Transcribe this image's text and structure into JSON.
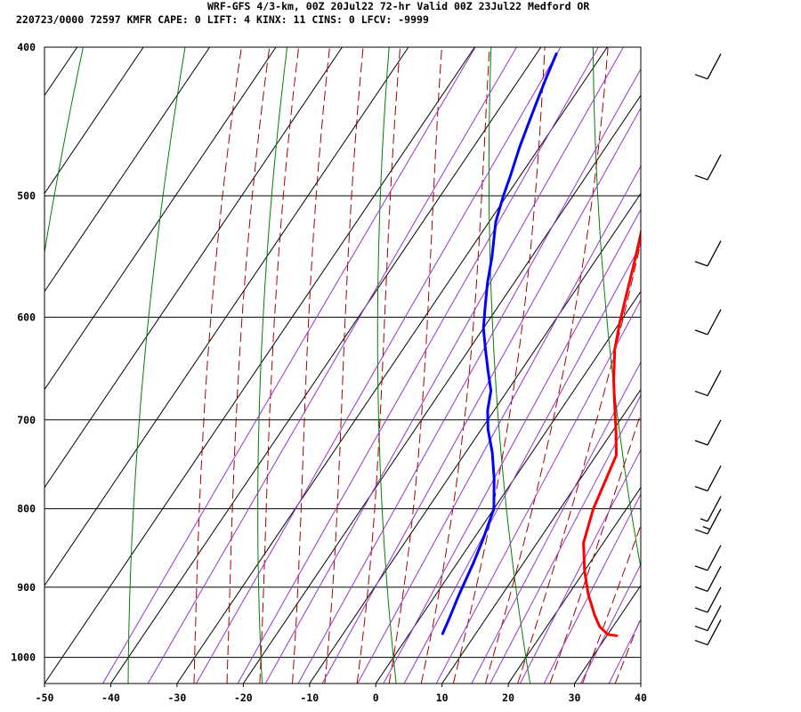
{
  "header": {
    "line1": "WRF-GFS 4/3-km, 00Z 20Jul22 72-hr Valid 00Z 23Jul22 Medford OR",
    "line2": "220723/0000 72597  KMFR    CAPE:     0 LIFT:     4 KINX:    11 CINS:     0 LFCV: -9999"
  },
  "chart_data": {
    "type": "line",
    "chart_kind": "skew-t log-p",
    "x_axis": {
      "range": [
        -50,
        40
      ],
      "ticks": [
        -50,
        -40,
        -30,
        -20,
        -10,
        0,
        10,
        20,
        30,
        40
      ]
    },
    "y_axis": {
      "scale": "log",
      "range": [
        1040,
        400
      ],
      "ticks": [
        400,
        500,
        600,
        700,
        800,
        900,
        1000
      ]
    },
    "grid": true,
    "series": [
      {
        "role": "temperature",
        "color": "#ff0000",
        "points": [
          [
            31.5,
            968
          ],
          [
            30,
            966
          ],
          [
            28,
            955
          ],
          [
            26,
            938
          ],
          [
            23,
            910
          ],
          [
            20,
            878
          ],
          [
            17,
            842
          ],
          [
            15,
            800
          ],
          [
            14,
            768
          ],
          [
            13,
            738
          ],
          [
            10.5,
            712
          ],
          [
            8,
            688
          ],
          [
            5,
            660
          ],
          [
            2,
            630
          ],
          [
            0,
            605
          ],
          [
            -2,
            578
          ],
          [
            -4,
            552
          ],
          [
            -6,
            528
          ],
          [
            -8,
            505
          ],
          [
            -10,
            484
          ],
          [
            -12,
            464
          ],
          [
            -14,
            447
          ],
          [
            -16,
            431
          ],
          [
            -18,
            416
          ],
          [
            -20,
            404
          ]
        ]
      },
      {
        "role": "dewpoint",
        "color": "#0000ff",
        "points": [
          [
            5,
            965
          ],
          [
            4.5,
            945
          ],
          [
            3.5,
            910
          ],
          [
            2.5,
            870
          ],
          [
            1.5,
            838
          ],
          [
            0,
            800
          ],
          [
            -3,
            765
          ],
          [
            -6,
            735
          ],
          [
            -9,
            710
          ],
          [
            -11,
            690
          ],
          [
            -12.5,
            670
          ],
          [
            -15,
            650
          ],
          [
            -17.5,
            630
          ],
          [
            -20,
            610
          ],
          [
            -22,
            590
          ],
          [
            -24,
            570
          ],
          [
            -26,
            548
          ],
          [
            -29,
            520
          ],
          [
            -30.5,
            500
          ],
          [
            -31.5,
            485
          ],
          [
            -33,
            465
          ],
          [
            -34,
            450
          ],
          [
            -35,
            435
          ],
          [
            -36,
            420
          ],
          [
            -37,
            404
          ]
        ]
      }
    ],
    "wind_barbs": [
      {
        "p": 404,
        "spd_kt": 10
      },
      {
        "p": 470,
        "spd_kt": 10
      },
      {
        "p": 535,
        "spd_kt": 10
      },
      {
        "p": 593,
        "spd_kt": 10
      },
      {
        "p": 650,
        "spd_kt": 10
      },
      {
        "p": 700,
        "spd_kt": 10
      },
      {
        "p": 750,
        "spd_kt": 10
      },
      {
        "p": 785,
        "spd_kt": 5
      },
      {
        "p": 800,
        "spd_kt": 15
      },
      {
        "p": 845,
        "spd_kt": 10
      },
      {
        "p": 872,
        "spd_kt": 10
      },
      {
        "p": 900,
        "spd_kt": 10
      },
      {
        "p": 925,
        "spd_kt": 10
      },
      {
        "p": 945,
        "spd_kt": 10
      }
    ],
    "colors": {
      "isotherm": "#000000",
      "dry_adiabat": "#008000",
      "moist_adiabat": "#a00000",
      "mixing_ratio": "#9933cc",
      "temperature": "#ff0000",
      "dewpoint": "#0000ff",
      "wind": "#000000"
    }
  }
}
